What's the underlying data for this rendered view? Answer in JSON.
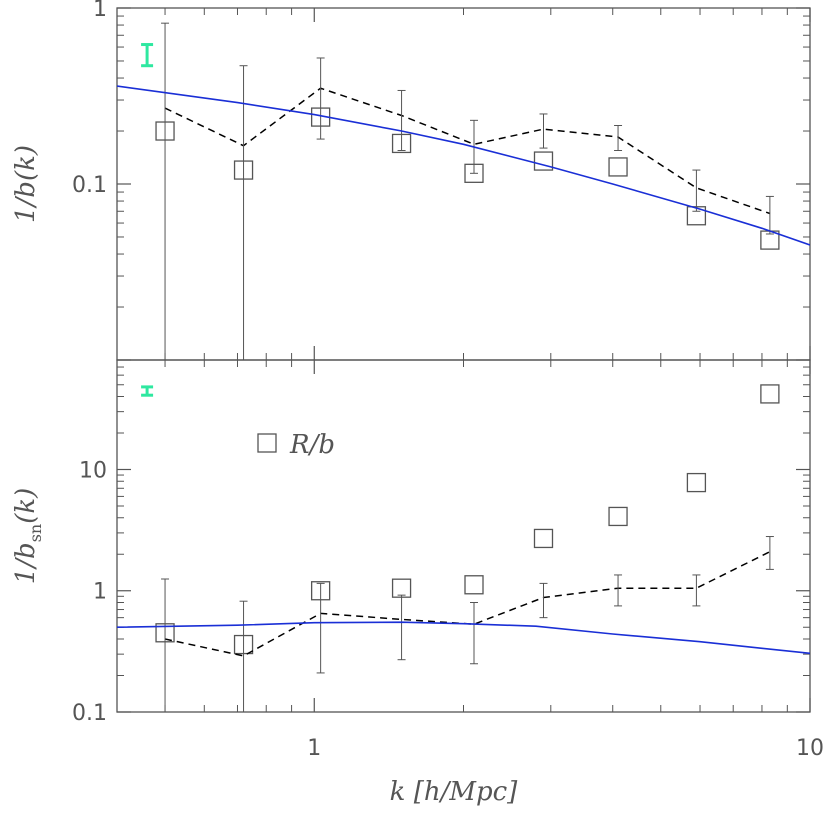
{
  "colors": {
    "frame": "#555555",
    "model_line": "#1a2fd6",
    "dashed_line": "#000000",
    "error_bar": "#555555",
    "marker": "#555555",
    "scale_bar": "#2ee8a0"
  },
  "x_axis": {
    "label": "k [h/Mpc]",
    "scale": "log",
    "range": [
      0.4,
      10
    ],
    "tick_labels": [
      {
        "value": 1,
        "text": "1"
      },
      {
        "value": 10,
        "text": "10"
      }
    ]
  },
  "chart_data": [
    {
      "type": "scatter",
      "panel": "top",
      "ylabel": "1/b(k)",
      "yscale": "log",
      "ylim": [
        0.01,
        1
      ],
      "y_tick_labels": [
        {
          "value": 1,
          "text": "1"
        },
        {
          "value": 0.1,
          "text": "0.1"
        }
      ],
      "scale_bar": {
        "x": 0.46,
        "y_low": 0.47,
        "y_high": 0.62
      },
      "series": [
        {
          "kind": "markers",
          "x": [
            0.5,
            0.72,
            1.03,
            1.5,
            2.1,
            2.9,
            4.1,
            5.9,
            8.3
          ],
          "y": [
            0.2,
            0.12,
            0.24,
            0.17,
            0.115,
            0.135,
            0.125,
            0.066,
            0.048
          ]
        },
        {
          "kind": "dashed",
          "x": [
            0.5,
            0.72,
            1.03,
            1.5,
            2.1,
            2.9,
            4.1,
            5.9,
            8.3
          ],
          "y": [
            0.27,
            0.165,
            0.35,
            0.245,
            0.168,
            0.205,
            0.185,
            0.095,
            0.068
          ],
          "yerr_low": [
            0.01,
            0.01,
            0.18,
            0.155,
            0.115,
            0.16,
            0.155,
            0.07,
            0.052
          ],
          "yerr_high": [
            0.82,
            0.47,
            0.52,
            0.34,
            0.23,
            0.25,
            0.215,
            0.12,
            0.085
          ]
        },
        {
          "kind": "model",
          "x": [
            0.4,
            0.7,
            1.0,
            1.5,
            2.0,
            3.0,
            4.0,
            6.0,
            8.0,
            10.0
          ],
          "y": [
            0.36,
            0.29,
            0.248,
            0.2,
            0.168,
            0.125,
            0.1,
            0.072,
            0.056,
            0.045
          ]
        }
      ]
    },
    {
      "type": "scatter",
      "panel": "bottom",
      "ylabel": "1/b_sn(k)",
      "yscale": "log",
      "ylim": [
        0.1,
        80
      ],
      "y_tick_labels": [
        {
          "value": 10,
          "text": "10"
        },
        {
          "value": 1,
          "text": "1"
        },
        {
          "value": 0.1,
          "text": "0.1"
        }
      ],
      "scale_bar": {
        "x": 0.46,
        "y_low": 41,
        "y_high": 48
      },
      "legend": {
        "label": "R/b",
        "position": "top-left"
      },
      "series": [
        {
          "kind": "markers",
          "name": "R/b",
          "x": [
            0.5,
            0.72,
            1.03,
            1.5,
            2.1,
            2.9,
            4.1,
            5.9,
            8.3
          ],
          "y": [
            0.45,
            0.36,
            1.0,
            1.05,
            1.12,
            2.7,
            4.1,
            7.8,
            42
          ]
        },
        {
          "kind": "dashed",
          "x": [
            0.5,
            0.72,
            1.03,
            1.5,
            2.1,
            2.9,
            4.1,
            5.9,
            8.3
          ],
          "y": [
            0.4,
            0.29,
            0.65,
            0.58,
            0.53,
            0.88,
            1.05,
            1.05,
            2.1
          ],
          "yerr_low": [
            0.1,
            0.1,
            0.21,
            0.27,
            0.25,
            0.6,
            0.75,
            0.75,
            1.5
          ],
          "yerr_high": [
            1.25,
            0.82,
            1.15,
            0.92,
            0.8,
            1.15,
            1.35,
            1.35,
            2.8
          ]
        },
        {
          "kind": "model",
          "x": [
            0.4,
            0.7,
            1.0,
            1.5,
            2.0,
            2.8,
            4.0,
            6.0,
            8.0,
            10.0
          ],
          "y": [
            0.5,
            0.52,
            0.545,
            0.55,
            0.535,
            0.51,
            0.44,
            0.38,
            0.335,
            0.305
          ]
        }
      ]
    }
  ]
}
